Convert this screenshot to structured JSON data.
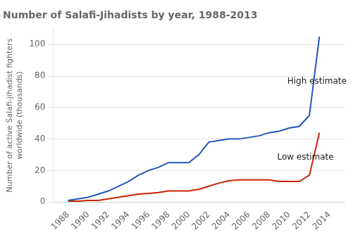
{
  "chart_data": {
    "type": "line",
    "title": "Number of Salafi-Jihadists by year, 1988-2013",
    "ylabel": "Number of active Salafi-jihadist fighters\nworldwide (thousands)",
    "x": [
      1988,
      1989,
      1990,
      1991,
      1992,
      1993,
      1994,
      1995,
      1996,
      1997,
      1998,
      1999,
      2000,
      2001,
      2002,
      2003,
      2004,
      2005,
      2006,
      2007,
      2008,
      2009,
      2010,
      2011,
      2012,
      2013
    ],
    "series": [
      {
        "color": "#2255bb",
        "values": [
          1,
          2,
          3,
          5,
          7,
          10,
          13,
          17,
          20,
          22,
          25,
          25,
          25,
          30,
          38,
          39,
          40,
          40,
          41,
          42,
          44,
          45,
          47,
          48,
          55,
          105
        ]
      },
      {
        "color": "#cc2200",
        "values": [
          0.5,
          0.5,
          1,
          1,
          2,
          3,
          4,
          5,
          5.5,
          6,
          7,
          7,
          7,
          8,
          10,
          12,
          13.5,
          14,
          14,
          14,
          14,
          13,
          13,
          13,
          17,
          44
        ]
      }
    ],
    "xlim": [
      1986.5,
      2015.5
    ],
    "xticks": [
      1988,
      1990,
      1992,
      1994,
      1996,
      1998,
      2000,
      2002,
      2004,
      2006,
      2008,
      2010,
      2012,
      2014
    ],
    "ylim": [
      0,
      110
    ],
    "yticks": [
      0,
      20,
      40,
      60,
      80,
      100
    ],
    "grid": "y",
    "annotations": [
      {
        "text": "High estimate",
        "x": 2009.8,
        "y": 75
      },
      {
        "text": "Low estimate",
        "x": 2008.8,
        "y": 27
      }
    ]
  }
}
